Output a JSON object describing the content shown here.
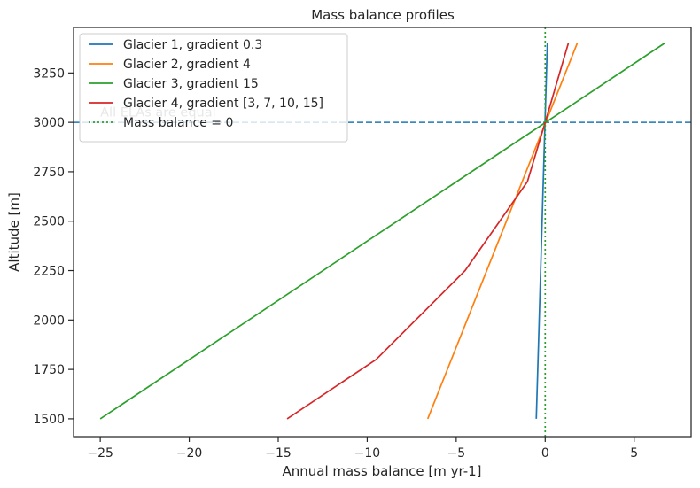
{
  "chart_data": {
    "type": "line",
    "title": "Mass balance profiles",
    "xlabel": "Annual mass balance [m yr-1]",
    "ylabel": "Altitude [m]",
    "xlim": [
      -26.5,
      8.2
    ],
    "ylim": [
      1410,
      3480
    ],
    "xticks": [
      -25,
      -20,
      -15,
      -10,
      -5,
      0,
      5
    ],
    "xtick_labels": [
      "−25",
      "−20",
      "−15",
      "−10",
      "−5",
      "0",
      "5"
    ],
    "yticks": [
      1500,
      1750,
      2000,
      2250,
      2500,
      2750,
      3000,
      3250
    ],
    "ytick_labels": [
      "1500",
      "1750",
      "2000",
      "2250",
      "2500",
      "2750",
      "3000",
      "3250"
    ],
    "grid": false,
    "legend_position": "top-left",
    "series": [
      {
        "name": "Glacier 1, gradient 0.3",
        "color": "#1f77b4",
        "style": "solid",
        "x": [
          -0.5,
          0.12
        ],
        "y": [
          1500,
          3400
        ]
      },
      {
        "name": "Glacier 2, gradient 4",
        "color": "#ff7f0e",
        "style": "solid",
        "x": [
          -6.6,
          1.8
        ],
        "y": [
          1500,
          3400
        ]
      },
      {
        "name": "Glacier 3, gradient 15",
        "color": "#2ca02c",
        "style": "solid",
        "x": [
          -25.0,
          6.7
        ],
        "y": [
          1500,
          3400
        ]
      },
      {
        "name": "Glacier 4, gradient [3, 7, 10, 15]",
        "color": "#d62728",
        "style": "solid",
        "x": [
          -14.5,
          -9.5,
          -4.5,
          -1.0,
          0.0,
          1.3
        ],
        "y": [
          1500,
          1800,
          2250,
          2700,
          3000,
          3400
        ]
      },
      {
        "name": "Mass balance = 0",
        "color": "#2ca02c",
        "style": "dotted",
        "x": [
          0,
          0
        ],
        "y": [
          1410,
          3480
        ]
      }
    ],
    "reference_lines": [
      {
        "orientation": "horizontal",
        "y": 3000,
        "color": "#1f77b4",
        "style": "dashed"
      }
    ],
    "annotations": [
      {
        "text": "All ELAs are equal",
        "x": -25.0,
        "y": 3030
      }
    ]
  }
}
